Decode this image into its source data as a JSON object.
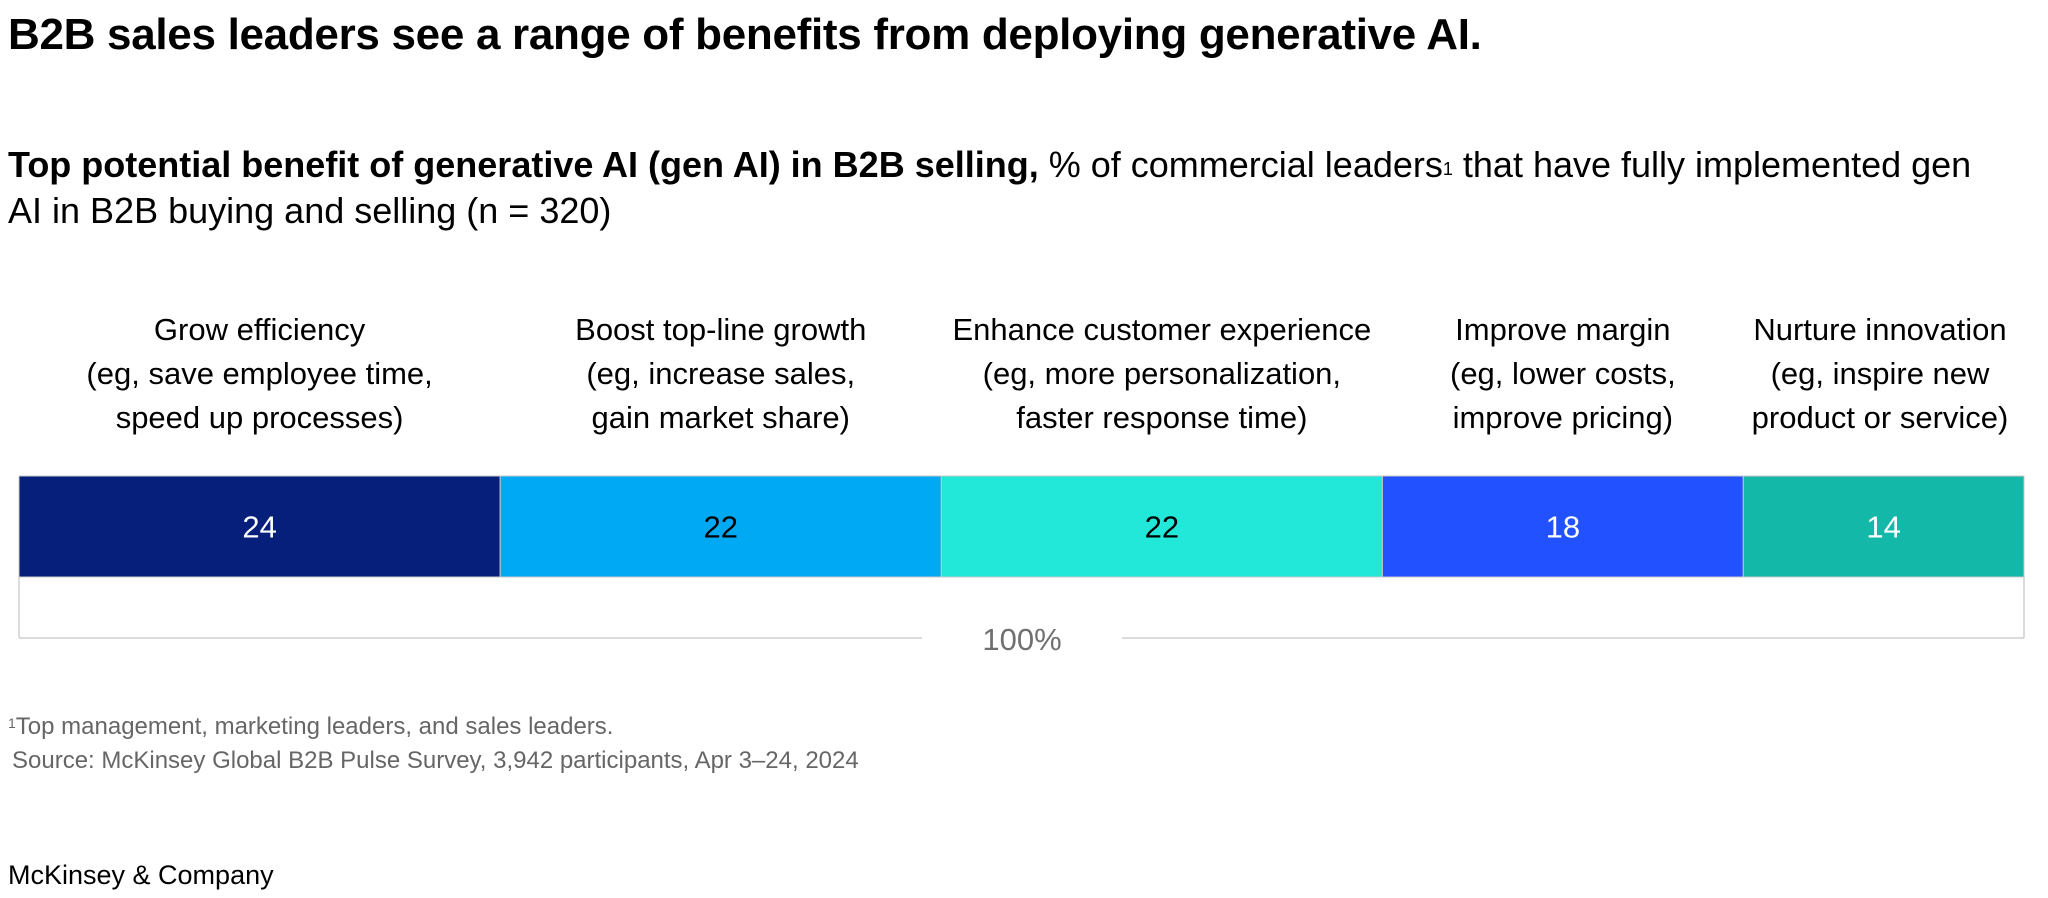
{
  "title": "B2B sales leaders see a range of benefits from deploying generative AI.",
  "subtitle": {
    "bold": "Top potential benefit of generative AI (gen AI) in B2B selling,",
    "regular_1": " % of commercial leaders",
    "footnote_marker": "1",
    "regular_2": " that have fully implemented gen AI in B2B buying and selling (n = 320)"
  },
  "chart_data": {
    "type": "bar",
    "stacked": true,
    "orientation": "horizontal",
    "categories": [
      [
        "Grow efficiency",
        "(eg, save employee time,",
        "speed up processes)"
      ],
      [
        "Boost top-line growth",
        "(eg, increase sales,",
        "gain market share)"
      ],
      [
        "Enhance customer experience",
        "(eg, more personalization,",
        "faster response time)"
      ],
      [
        "Improve margin",
        "(eg, lower costs,",
        "improve pricing)"
      ],
      [
        "Nurture innovation",
        "(eg, inspire new",
        "product or service)"
      ]
    ],
    "values": [
      24,
      22,
      22,
      18,
      14
    ],
    "colors": [
      "#051f7a",
      "#00a9f4",
      "#21e8d9",
      "#2251ff",
      "#14b8a9"
    ],
    "label_colors": [
      "#ffffff",
      "#000000",
      "#000000",
      "#ffffff",
      "#ffffff"
    ],
    "total_label": "100%",
    "xlim": [
      0,
      100
    ]
  },
  "footnotes": {
    "marker": "1",
    "note": "Top management, marketing leaders, and sales leaders.",
    "source": "Source: McKinsey Global B2B Pulse Survey, 3,942 participants, Apr 3–24, 2024"
  },
  "logo": "McKinsey & Company"
}
